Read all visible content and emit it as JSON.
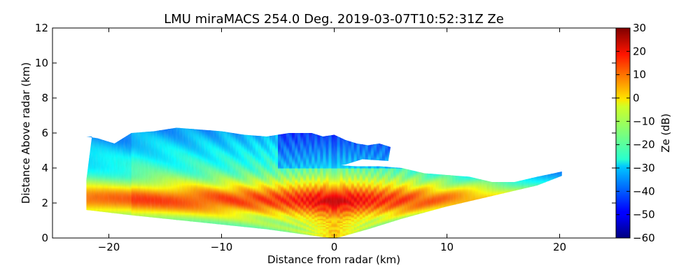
{
  "chart_data": {
    "type": "heatmap",
    "title": "LMU miraMACS 254.0 Deg. 2019-03-07T10:52:31Z  Ze",
    "xlabel": "Distance from radar (km)",
    "ylabel": "Distance Above radar  (km)",
    "xlim": [
      -25,
      25
    ],
    "ylim": [
      0,
      12
    ],
    "xticks": [
      "−20",
      "−10",
      "0",
      "10",
      "20"
    ],
    "yticks": [
      "0",
      "2",
      "4",
      "6",
      "8",
      "10",
      "12"
    ],
    "grid": false,
    "colorbar": {
      "label": "Ze (dB)",
      "range": [
        -60,
        30
      ],
      "ticks": [
        "−60",
        "−50",
        "−40",
        "−30",
        "−20",
        "−10",
        "0",
        "10",
        "20",
        "30"
      ],
      "colormap": "jet"
    },
    "scan": {
      "azimuth_deg": 254.0,
      "radar_position_km": [
        0,
        0
      ],
      "max_range_km": 22,
      "left_edge_km": -22,
      "right_edge_km": 20.2
    },
    "features": [
      {
        "name": "strong core near radar",
        "x_range": [
          -3,
          3
        ],
        "y_range": [
          0,
          1
        ],
        "ze_db": 25
      },
      {
        "name": "bright band layer",
        "x_range": [
          -22,
          12
        ],
        "y_range": [
          1.5,
          3.5
        ],
        "ze_db": 12
      },
      {
        "name": "upper cloud layer",
        "x_range": [
          -22,
          3
        ],
        "y_range": [
          3.5,
          6.3
        ],
        "ze_db": -15
      },
      {
        "name": "cloud top edge",
        "x_range": [
          -5,
          6
        ],
        "y_range": [
          4,
          6
        ],
        "ze_db": -30
      },
      {
        "name": "right low-elevation tail",
        "x_range": [
          5,
          20.2
        ],
        "y_range": [
          0.5,
          3.8
        ],
        "ze_db": -8
      }
    ]
  }
}
